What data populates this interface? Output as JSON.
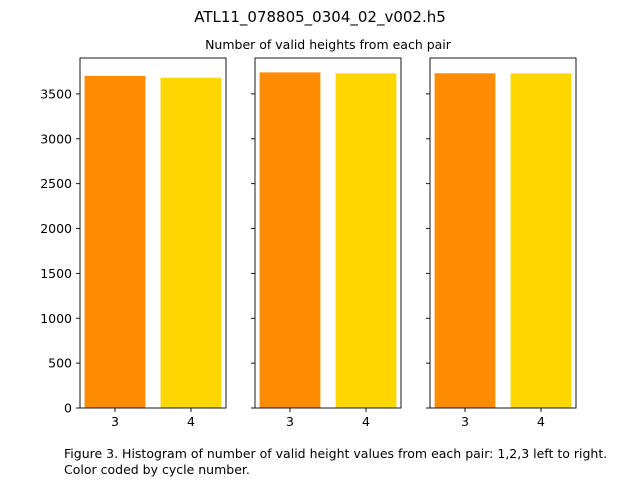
{
  "figure": {
    "suptitle": "ATL11_078805_0304_02_v002.h5",
    "title": "Number of valid heights from each pair",
    "caption": "Figure 3. Histogram of number of valid height values from each pair: 1,2,3 left to right. Color coded by cycle number."
  },
  "chart_data": [
    {
      "type": "bar",
      "pair": 1,
      "categories": [
        "3",
        "4"
      ],
      "values": [
        3700,
        3680
      ],
      "colors": [
        "#ff8c00",
        "#ffd700"
      ],
      "ylim": [
        0,
        3900
      ],
      "yticks": [
        0,
        500,
        1000,
        1500,
        2000,
        2500,
        3000,
        3500
      ],
      "ytick_labels_visible": true
    },
    {
      "type": "bar",
      "pair": 2,
      "categories": [
        "3",
        "4"
      ],
      "values": [
        3740,
        3730
      ],
      "colors": [
        "#ff8c00",
        "#ffd700"
      ],
      "ylim": [
        0,
        3900
      ],
      "yticks": [
        0,
        500,
        1000,
        1500,
        2000,
        2500,
        3000,
        3500
      ],
      "ytick_labels_visible": false
    },
    {
      "type": "bar",
      "pair": 3,
      "categories": [
        "3",
        "4"
      ],
      "values": [
        3730,
        3730
      ],
      "colors": [
        "#ff8c00",
        "#ffd700"
      ],
      "ylim": [
        0,
        3900
      ],
      "yticks": [
        0,
        500,
        1000,
        1500,
        2000,
        2500,
        3000,
        3500
      ],
      "ytick_labels_visible": false
    }
  ]
}
